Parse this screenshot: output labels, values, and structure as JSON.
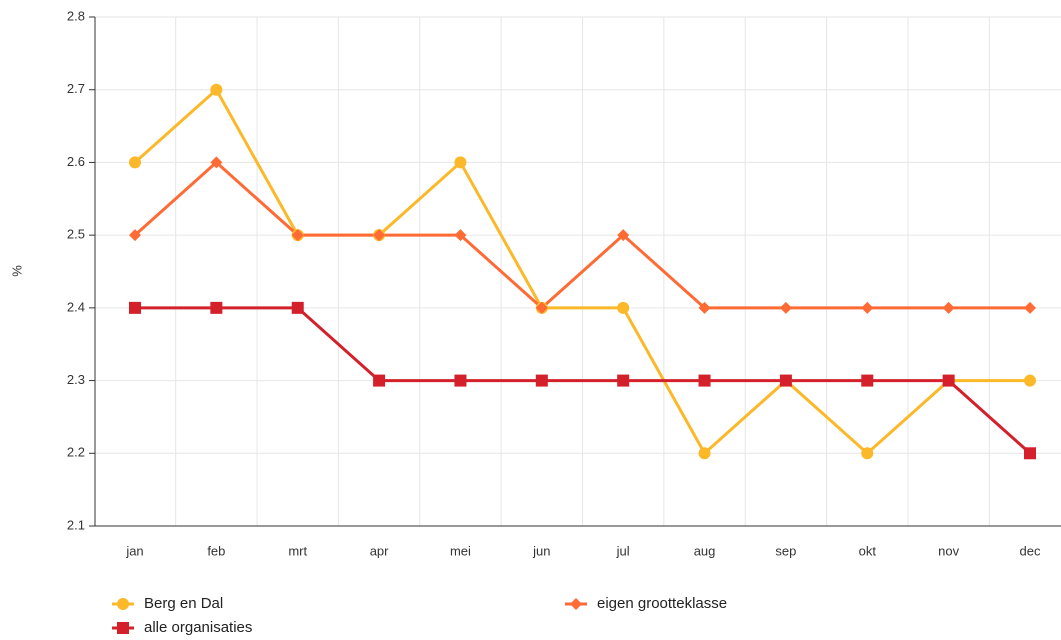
{
  "chart_data": {
    "type": "line",
    "ylabel": "%",
    "categories": [
      "jan",
      "feb",
      "mrt",
      "apr",
      "mei",
      "jun",
      "jul",
      "aug",
      "sep",
      "okt",
      "nov",
      "dec"
    ],
    "series": [
      {
        "name": "Berg en Dal",
        "color": "#fbb829",
        "marker": "circle",
        "values": [
          2.6,
          2.7,
          2.5,
          2.5,
          2.6,
          2.4,
          2.4,
          2.2,
          2.3,
          2.2,
          2.3,
          2.3
        ]
      },
      {
        "name": "eigen grootteklasse",
        "color": "#ff6b35",
        "marker": "diamond",
        "values": [
          2.5,
          2.6,
          2.5,
          2.5,
          2.5,
          2.4,
          2.5,
          2.4,
          2.4,
          2.4,
          2.4,
          2.4
        ]
      },
      {
        "name": "alle organisaties",
        "color": "#d3202a",
        "marker": "square",
        "values": [
          2.4,
          2.4,
          2.4,
          2.3,
          2.3,
          2.3,
          2.3,
          2.3,
          2.3,
          2.3,
          2.3,
          2.2
        ]
      }
    ],
    "ylim": [
      2.1,
      2.8
    ],
    "yticks": [
      2.1,
      2.2,
      2.3,
      2.4,
      2.5,
      2.6,
      2.7,
      2.8
    ],
    "grid": true
  }
}
